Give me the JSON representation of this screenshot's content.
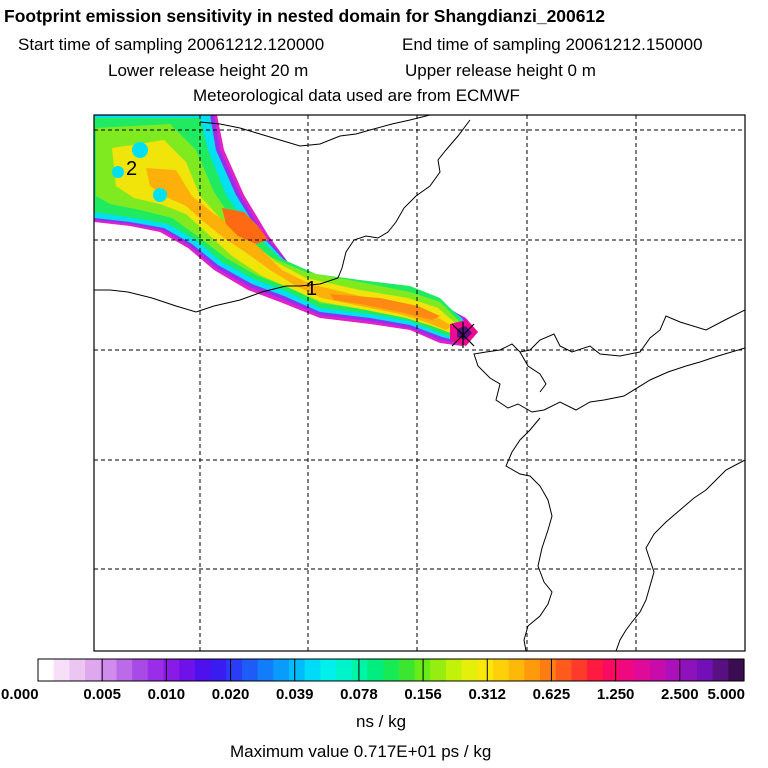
{
  "header": {
    "title": "Footprint emission sensitivity in nested domain for Shangdianzi_200612",
    "start_time": "Start time of sampling 20061212.120000",
    "end_time": "End time of sampling 20061212.150000",
    "lower_height": "Lower release height   20 m",
    "upper_height": "Upper release height    0 m",
    "met_data": "Meteorological data used are from ECMWF"
  },
  "chart_data": {
    "type": "heatmap",
    "title": "Footprint emission sensitivity in nested domain for Shangdianzi_200612",
    "contour_labels": [
      "2",
      "1"
    ],
    "colorbar": {
      "tick_labels": [
        "0.000",
        "0.005",
        "0.010",
        "0.020",
        "0.039",
        "0.078",
        "0.156",
        "0.312",
        "0.625",
        "1.250",
        "2.500",
        "5.000"
      ],
      "tick_values": [
        0.0,
        0.005,
        0.01,
        0.02,
        0.039,
        0.078,
        0.156,
        0.312,
        0.625,
        1.25,
        2.5,
        5.0
      ],
      "colors": [
        "#ffffff",
        "#f7e0f7",
        "#ecc6f0",
        "#dfa8ee",
        "#cf8cec",
        "#bb6be8",
        "#a84ae6",
        "#9a2ee8",
        "#8a1ae6",
        "#6f12ea",
        "#4f10ee",
        "#3a1cf2",
        "#2a3cf6",
        "#1e5cf8",
        "#127cfa",
        "#0a9cfa",
        "#00bcfa",
        "#00dcf8",
        "#00f0ec",
        "#00f4cc",
        "#00f4a6",
        "#00ee80",
        "#18ea56",
        "#3ce630",
        "#6aea18",
        "#96ee10",
        "#c2f20a",
        "#e4f00a",
        "#fae80a",
        "#fed00a",
        "#feb80a",
        "#fe9a0c",
        "#fe7c14",
        "#fe5a1c",
        "#fe3a2a",
        "#fe1a40",
        "#fa0a60",
        "#f00880",
        "#e00a9a",
        "#c80cac",
        "#ac10b8",
        "#8e12bc",
        "#7010b6",
        "#561082",
        "#3a0c50"
      ],
      "unit": "ns / kg"
    },
    "max_value": "Maximum value  0.717E+01 ps / kg"
  }
}
